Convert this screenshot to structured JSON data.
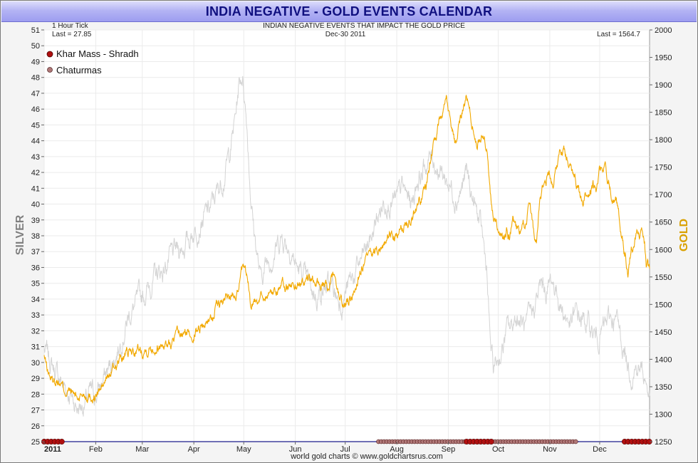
{
  "title": "INDIA NEGATIVE - GOLD EVENTS CALENDAR",
  "chart_data": {
    "type": "line",
    "title": "INDIA NEGATIVE - GOLD EVENTS CALENDAR",
    "subtitle": "INDIAN NEGATIVE EVENTS THAT IMPACT THE GOLD PRICE",
    "tick_label": "1 Hour Tick",
    "date_label": "Dec-30  2011",
    "last_left": "Last = 27.85",
    "last_right": "Last = 1564.7",
    "ylabel_left": "SILVER",
    "ylabel_right": "GOLD",
    "footer": "world gold charts © www.goldchartsrus.com",
    "colors": {
      "silver": "#d4d4d4",
      "gold": "#f2a900",
      "baseline": "#1c1c8c",
      "khar": "#b01010",
      "chat": "#b07878"
    },
    "silver_axis": {
      "min": 25,
      "max": 51,
      "ticks": [
        "25",
        "26",
        "27",
        "28",
        "29",
        "30",
        "31",
        "32",
        "33",
        "34",
        "35",
        "36",
        "37",
        "38",
        "39",
        "40",
        "41",
        "42",
        "43",
        "44",
        "45",
        "46",
        "47",
        "48",
        "49",
        "50",
        "51"
      ]
    },
    "gold_axis": {
      "min": 1250,
      "max": 2000,
      "ticks": [
        "1250",
        "1300",
        "1350",
        "1400",
        "1450",
        "1500",
        "1550",
        "1600",
        "1650",
        "1700",
        "1750",
        "1800",
        "1850",
        "1900",
        "1950",
        "2000"
      ]
    },
    "x_axis": {
      "min": 0,
      "max": 364,
      "labels": [
        {
          "text": "2011",
          "day": 0
        },
        {
          "text": "Feb",
          "day": 31
        },
        {
          "text": "Mar",
          "day": 59
        },
        {
          "text": "Apr",
          "day": 90
        },
        {
          "text": "May",
          "day": 120
        },
        {
          "text": "Jun",
          "day": 151
        },
        {
          "text": "Jul",
          "day": 181
        },
        {
          "text": "Aug",
          "day": 212
        },
        {
          "text": "Sep",
          "day": 243
        },
        {
          "text": "Oct",
          "day": 273
        },
        {
          "text": "Nov",
          "day": 304
        },
        {
          "text": "Dec",
          "day": 334
        }
      ]
    },
    "legend": [
      {
        "name": "Khar Mass - Shradh",
        "color": "#b01010"
      },
      {
        "name": "Chaturmas",
        "color": "#b07878"
      }
    ],
    "events": [
      {
        "name": "Khar Mass - Shradh",
        "start": 0,
        "end": 12
      },
      {
        "name": "Chaturmas",
        "start": 201,
        "end": 320
      },
      {
        "name": "Khar Mass - Shradh",
        "start": 254,
        "end": 270
      },
      {
        "name": "Khar Mass - Shradh",
        "start": 349,
        "end": 364
      }
    ],
    "series": [
      {
        "name": "GOLD",
        "axis": "right",
        "x": [
          0,
          2,
          5,
          8,
          12,
          16,
          20,
          24,
          28,
          31,
          34,
          38,
          42,
          46,
          50,
          55,
          59,
          63,
          68,
          72,
          76,
          80,
          84,
          88,
          92,
          96,
          100,
          104,
          108,
          112,
          116,
          119,
          122,
          124,
          126,
          130,
          134,
          138,
          142,
          146,
          150,
          154,
          158,
          162,
          166,
          170,
          174,
          178,
          180,
          183,
          186,
          189,
          192,
          196,
          200,
          204,
          208,
          212,
          216,
          220,
          224,
          228,
          230,
          232,
          234,
          236,
          238,
          240,
          242,
          244,
          246,
          248,
          250,
          252,
          254,
          256,
          258,
          260,
          262,
          264,
          266,
          268,
          270,
          272,
          274,
          276,
          278,
          280,
          282,
          284,
          286,
          288,
          290,
          292,
          294,
          296,
          298,
          300,
          302,
          304,
          306,
          308,
          310,
          312,
          314,
          316,
          318,
          320,
          322,
          324,
          326,
          328,
          330,
          332,
          334,
          336,
          338,
          340,
          342,
          344,
          346,
          348,
          349,
          351,
          353,
          355,
          357,
          359,
          361,
          362,
          363,
          364
        ],
        "values": [
          1405,
          1380,
          1360,
          1365,
          1345,
          1340,
          1330,
          1340,
          1335,
          1333,
          1345,
          1365,
          1385,
          1400,
          1410,
          1415,
          1418,
          1423,
          1425,
          1430,
          1428,
          1440,
          1445,
          1447,
          1455,
          1465,
          1475,
          1495,
          1505,
          1515,
          1530,
          1560,
          1545,
          1500,
          1510,
          1515,
          1520,
          1525,
          1535,
          1530,
          1540,
          1535,
          1545,
          1540,
          1535,
          1525,
          1545,
          1510,
          1495,
          1505,
          1520,
          1550,
          1570,
          1585,
          1600,
          1610,
          1625,
          1620,
          1640,
          1660,
          1680,
          1700,
          1720,
          1760,
          1790,
          1810,
          1840,
          1870,
          1880,
          1850,
          1810,
          1790,
          1830,
          1860,
          1880,
          1850,
          1820,
          1790,
          1800,
          1810,
          1790,
          1700,
          1660,
          1650,
          1620,
          1610,
          1640,
          1620,
          1660,
          1640,
          1630,
          1640,
          1650,
          1680,
          1640,
          1620,
          1700,
          1720,
          1730,
          1740,
          1720,
          1760,
          1770,
          1790,
          1780,
          1760,
          1740,
          1720,
          1700,
          1680,
          1700,
          1710,
          1720,
          1700,
          1740,
          1750,
          1740,
          1720,
          1700,
          1690,
          1650,
          1620,
          1600,
          1560,
          1600,
          1620,
          1640,
          1630,
          1615,
          1565,
          1580,
          1565
        ]
      },
      {
        "name": "SILVER",
        "axis": "left",
        "x": [
          0,
          4,
          8,
          12,
          16,
          20,
          24,
          28,
          31,
          35,
          39,
          43,
          47,
          51,
          55,
          59,
          63,
          67,
          71,
          75,
          79,
          83,
          87,
          91,
          95,
          99,
          103,
          107,
          111,
          113,
          115,
          117,
          119,
          120,
          122,
          124,
          126,
          128,
          130,
          132,
          134,
          137,
          140,
          143,
          146,
          149,
          152,
          155,
          158,
          161,
          164,
          167,
          170,
          173,
          176,
          179,
          182,
          185,
          188,
          191,
          194,
          197,
          200,
          203,
          206,
          209,
          212,
          215,
          218,
          221,
          224,
          227,
          230,
          233,
          236,
          239,
          242,
          245,
          248,
          251,
          254,
          257,
          260,
          263,
          266,
          268,
          270,
          272,
          274,
          276,
          278,
          281,
          284,
          287,
          290,
          293,
          296,
          299,
          302,
          305,
          308,
          311,
          314,
          317,
          320,
          323,
          326,
          329,
          332,
          335,
          338,
          341,
          344,
          347,
          350,
          353,
          356,
          359,
          362,
          364
        ],
        "values": [
          30.8,
          30.0,
          29.2,
          28.5,
          28.0,
          27.2,
          27.4,
          28.0,
          27.9,
          28.8,
          29.6,
          30.5,
          31.8,
          33.0,
          33.6,
          34.1,
          34.8,
          35.5,
          35.7,
          36.5,
          36.9,
          37.3,
          37.8,
          38.5,
          39.1,
          39.5,
          40.5,
          41.5,
          43.0,
          44.2,
          45.5,
          47.5,
          48.2,
          47.5,
          45.0,
          41.0,
          38.5,
          37.0,
          35.2,
          35.8,
          36.4,
          36.8,
          37.4,
          38.0,
          37.6,
          37.0,
          36.0,
          35.6,
          35.0,
          34.5,
          34.3,
          34.7,
          34.8,
          34.6,
          34.1,
          33.9,
          34.7,
          35.2,
          35.8,
          36.5,
          37.2,
          38.0,
          39.0,
          39.8,
          40.5,
          40.2,
          40.0,
          41.0,
          40.5,
          40.1,
          41.5,
          42.0,
          42.5,
          43.0,
          42.5,
          42.0,
          41.5,
          41.0,
          40.5,
          41.0,
          42.0,
          40.5,
          39.5,
          38.2,
          36.0,
          31.5,
          29.5,
          30.0,
          30.5,
          31.0,
          32.0,
          32.2,
          33.0,
          32.5,
          32.0,
          33.0,
          34.0,
          34.8,
          34.5,
          35.2,
          34.6,
          33.5,
          32.8,
          32.4,
          33.0,
          32.7,
          32.5,
          32.0,
          31.5,
          32.0,
          32.4,
          32.8,
          32.6,
          31.5,
          30.2,
          29.5,
          29.8,
          29.5,
          28.8,
          27.9
        ]
      }
    ]
  }
}
